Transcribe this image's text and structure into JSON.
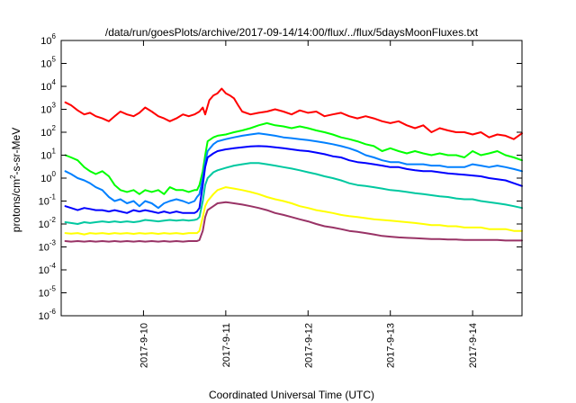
{
  "chart_data": {
    "type": "line",
    "title": "/data/run/goesPlots/archive/2017-09-14/14:00/flux/../flux/5daysMoonFluxes.txt",
    "xlabel": "Coordinated Universal Time (UTC)",
    "ylabel": "protons/cm2-s-sr-MeV",
    "ylabel_parts": {
      "pre": "protons/cm",
      "sup": "2",
      "post": "-s-sr-MeV"
    },
    "yscale": "log",
    "ylim": [
      1e-06,
      1000000.0
    ],
    "xlim": [
      0,
      5.6
    ],
    "x_unit_note": "",
    "grid": false,
    "y_ticks": [
      {
        "exp": -6,
        "base": "10",
        "sup": "-6"
      },
      {
        "exp": -5,
        "base": "10",
        "sup": "-5"
      },
      {
        "exp": -4,
        "base": "10",
        "sup": "-4"
      },
      {
        "exp": -3,
        "base": "10",
        "sup": "-3"
      },
      {
        "exp": -2,
        "base": "10",
        "sup": "-2"
      },
      {
        "exp": -1,
        "base": "10",
        "sup": "-1"
      },
      {
        "exp": 0,
        "base": "10",
        "sup": "0"
      },
      {
        "exp": 1,
        "base": "10",
        "sup": "1"
      },
      {
        "exp": 2,
        "base": "10",
        "sup": "2"
      },
      {
        "exp": 3,
        "base": "10",
        "sup": "3"
      },
      {
        "exp": 4,
        "base": "10",
        "sup": "4"
      },
      {
        "exp": 5,
        "base": "10",
        "sup": "5"
      },
      {
        "exp": 6,
        "base": "10",
        "sup": "6"
      }
    ],
    "x_ticks": [
      {
        "x": 1,
        "label": "2017-9-10"
      },
      {
        "x": 2,
        "label": "2017-9-11"
      },
      {
        "x": 3,
        "label": "2017-9-12"
      },
      {
        "x": 4,
        "label": "2017-9-13"
      },
      {
        "x": 5,
        "label": "2017-9-14"
      }
    ],
    "series": [
      {
        "color": "#ff0000",
        "x": [
          0.05,
          0.12,
          0.2,
          0.28,
          0.35,
          0.42,
          0.5,
          0.58,
          0.65,
          0.72,
          0.8,
          0.88,
          0.95,
          1.02,
          1.1,
          1.18,
          1.25,
          1.32,
          1.4,
          1.48,
          1.55,
          1.62,
          1.68,
          1.72,
          1.75,
          1.8,
          1.85,
          1.9,
          1.95,
          2.0,
          2.05,
          2.1,
          2.15,
          2.2,
          2.3,
          2.4,
          2.5,
          2.6,
          2.7,
          2.8,
          2.9,
          3.0,
          3.1,
          3.2,
          3.3,
          3.4,
          3.5,
          3.6,
          3.7,
          3.8,
          3.9,
          4.0,
          4.1,
          4.2,
          4.3,
          4.4,
          4.5,
          4.6,
          4.7,
          4.8,
          4.9,
          5.0,
          5.1,
          5.2,
          5.3,
          5.4,
          5.5,
          5.6
        ],
        "y": [
          2000,
          1500,
          900,
          600,
          700,
          500,
          400,
          300,
          500,
          800,
          600,
          500,
          700,
          1200,
          800,
          500,
          400,
          300,
          400,
          600,
          500,
          600,
          800,
          1200,
          600,
          2500,
          4000,
          5000,
          8000,
          5000,
          4000,
          3000,
          1500,
          800,
          600,
          700,
          800,
          1000,
          800,
          600,
          900,
          700,
          800,
          500,
          600,
          700,
          500,
          400,
          500,
          400,
          300,
          250,
          300,
          200,
          150,
          200,
          100,
          150,
          120,
          100,
          100,
          80,
          100,
          60,
          80,
          70,
          50,
          90
        ]
      },
      {
        "color": "#00ff00",
        "x": [
          0.05,
          0.12,
          0.2,
          0.28,
          0.35,
          0.42,
          0.5,
          0.58,
          0.65,
          0.72,
          0.8,
          0.88,
          0.95,
          1.02,
          1.1,
          1.18,
          1.25,
          1.32,
          1.4,
          1.48,
          1.55,
          1.62,
          1.65,
          1.68,
          1.72,
          1.75,
          1.78,
          1.85,
          1.9,
          2.0,
          2.1,
          2.2,
          2.3,
          2.4,
          2.5,
          2.6,
          2.7,
          2.8,
          2.9,
          3.0,
          3.1,
          3.2,
          3.3,
          3.4,
          3.5,
          3.6,
          3.7,
          3.8,
          3.9,
          4.0,
          4.1,
          4.2,
          4.3,
          4.4,
          4.5,
          4.6,
          4.7,
          4.8,
          4.9,
          5.0,
          5.1,
          5.2,
          5.3,
          5.4,
          5.5,
          5.6
        ],
        "y": [
          10,
          8,
          6,
          3,
          2,
          1.5,
          2,
          1.2,
          0.5,
          0.3,
          0.25,
          0.3,
          0.2,
          0.3,
          0.25,
          0.3,
          0.2,
          0.4,
          0.3,
          0.3,
          0.25,
          0.3,
          0.3,
          0.5,
          2,
          10,
          40,
          60,
          70,
          80,
          100,
          120,
          150,
          200,
          250,
          200,
          180,
          150,
          180,
          150,
          120,
          100,
          80,
          60,
          50,
          40,
          30,
          25,
          15,
          20,
          15,
          12,
          15,
          12,
          10,
          12,
          10,
          10,
          8,
          15,
          10,
          12,
          15,
          10,
          8,
          6
        ]
      },
      {
        "color": "#0080ff",
        "x": [
          0.05,
          0.12,
          0.2,
          0.28,
          0.35,
          0.42,
          0.5,
          0.58,
          0.65,
          0.72,
          0.8,
          0.88,
          0.95,
          1.02,
          1.1,
          1.18,
          1.25,
          1.32,
          1.4,
          1.48,
          1.55,
          1.62,
          1.65,
          1.68,
          1.72,
          1.75,
          1.78,
          1.85,
          1.9,
          2.0,
          2.1,
          2.2,
          2.3,
          2.4,
          2.5,
          2.6,
          2.7,
          2.8,
          2.9,
          3.0,
          3.1,
          3.2,
          3.3,
          3.4,
          3.5,
          3.6,
          3.7,
          3.8,
          3.9,
          4.0,
          4.1,
          4.2,
          4.3,
          4.4,
          4.5,
          4.6,
          4.7,
          4.8,
          4.9,
          5.0,
          5.1,
          5.2,
          5.3,
          5.4,
          5.5,
          5.6
        ],
        "y": [
          2,
          1.5,
          1,
          0.8,
          0.6,
          0.4,
          0.3,
          0.15,
          0.1,
          0.12,
          0.08,
          0.1,
          0.06,
          0.1,
          0.08,
          0.05,
          0.08,
          0.1,
          0.12,
          0.1,
          0.08,
          0.1,
          0.15,
          0.2,
          1,
          5,
          15,
          30,
          40,
          50,
          60,
          70,
          80,
          90,
          80,
          70,
          60,
          55,
          50,
          45,
          40,
          35,
          30,
          25,
          20,
          15,
          10,
          8,
          6,
          5,
          5,
          4,
          4,
          4,
          3.5,
          3.5,
          3,
          3,
          3,
          4,
          3.5,
          3,
          3.5,
          3,
          2.5,
          2
        ]
      },
      {
        "color": "#0000ff",
        "x": [
          0.05,
          0.12,
          0.2,
          0.28,
          0.35,
          0.42,
          0.5,
          0.58,
          0.65,
          0.72,
          0.8,
          0.88,
          0.95,
          1.02,
          1.1,
          1.18,
          1.25,
          1.32,
          1.4,
          1.48,
          1.55,
          1.62,
          1.65,
          1.68,
          1.72,
          1.75,
          1.78,
          1.85,
          1.9,
          2.0,
          2.1,
          2.2,
          2.3,
          2.4,
          2.5,
          2.6,
          2.7,
          2.8,
          2.9,
          3.0,
          3.1,
          3.2,
          3.3,
          3.4,
          3.5,
          3.6,
          3.7,
          3.8,
          3.9,
          4.0,
          4.1,
          4.2,
          4.3,
          4.4,
          4.5,
          4.6,
          4.7,
          4.8,
          4.9,
          5.0,
          5.1,
          5.2,
          5.3,
          5.4,
          5.5,
          5.6
        ],
        "y": [
          0.06,
          0.05,
          0.04,
          0.05,
          0.045,
          0.04,
          0.04,
          0.035,
          0.04,
          0.035,
          0.03,
          0.04,
          0.035,
          0.04,
          0.035,
          0.03,
          0.035,
          0.03,
          0.035,
          0.03,
          0.03,
          0.03,
          0.035,
          0.05,
          0.5,
          3,
          8,
          12,
          15,
          18,
          20,
          22,
          24,
          25,
          24,
          22,
          20,
          18,
          16,
          15,
          13,
          11,
          9,
          8,
          6,
          5,
          4.5,
          4,
          3.5,
          3,
          3,
          2.5,
          2.2,
          2,
          2,
          1.8,
          1.6,
          1.5,
          1.4,
          1.3,
          1.2,
          1.0,
          0.9,
          0.8,
          0.6,
          0.45
        ]
      },
      {
        "color": "#00c8a0",
        "x": [
          0.05,
          0.12,
          0.2,
          0.28,
          0.35,
          0.42,
          0.5,
          0.58,
          0.65,
          0.72,
          0.8,
          0.88,
          0.95,
          1.02,
          1.1,
          1.18,
          1.25,
          1.32,
          1.4,
          1.48,
          1.55,
          1.62,
          1.65,
          1.68,
          1.72,
          1.75,
          1.78,
          1.85,
          1.9,
          2.0,
          2.1,
          2.2,
          2.3,
          2.4,
          2.5,
          2.6,
          2.7,
          2.8,
          2.9,
          3.0,
          3.1,
          3.2,
          3.3,
          3.4,
          3.5,
          3.6,
          3.7,
          3.8,
          3.9,
          4.0,
          4.1,
          4.2,
          4.3,
          4.4,
          4.5,
          4.6,
          4.7,
          4.8,
          4.9,
          5.0,
          5.1,
          5.2,
          5.3,
          5.4,
          5.5,
          5.6
        ],
        "y": [
          0.012,
          0.011,
          0.01,
          0.012,
          0.011,
          0.012,
          0.013,
          0.012,
          0.013,
          0.012,
          0.013,
          0.012,
          0.013,
          0.015,
          0.014,
          0.013,
          0.014,
          0.015,
          0.014,
          0.015,
          0.014,
          0.015,
          0.016,
          0.02,
          0.1,
          0.5,
          1,
          1.8,
          2.2,
          2.8,
          3.5,
          4,
          4.5,
          4.5,
          4,
          3.5,
          3,
          2.6,
          2.2,
          1.8,
          1.5,
          1.2,
          1,
          0.8,
          0.6,
          0.5,
          0.45,
          0.4,
          0.35,
          0.3,
          0.28,
          0.25,
          0.22,
          0.2,
          0.18,
          0.16,
          0.15,
          0.13,
          0.12,
          0.12,
          0.1,
          0.09,
          0.08,
          0.07,
          0.06,
          0.05
        ]
      },
      {
        "color": "#ffff00",
        "x": [
          0.05,
          0.12,
          0.2,
          0.28,
          0.35,
          0.42,
          0.5,
          0.58,
          0.65,
          0.72,
          0.8,
          0.88,
          0.95,
          1.02,
          1.1,
          1.18,
          1.25,
          1.32,
          1.4,
          1.48,
          1.55,
          1.62,
          1.65,
          1.68,
          1.72,
          1.75,
          1.78,
          1.85,
          1.9,
          2.0,
          2.1,
          2.2,
          2.3,
          2.4,
          2.5,
          2.6,
          2.7,
          2.8,
          2.9,
          3.0,
          3.1,
          3.2,
          3.3,
          3.4,
          3.5,
          3.6,
          3.7,
          3.8,
          3.9,
          4.0,
          4.1,
          4.2,
          4.3,
          4.4,
          4.5,
          4.6,
          4.7,
          4.8,
          4.9,
          5.0,
          5.1,
          5.2,
          5.3,
          5.4,
          5.5,
          5.6
        ],
        "y": [
          0.004,
          0.0038,
          0.004,
          0.0035,
          0.004,
          0.0038,
          0.004,
          0.0037,
          0.004,
          0.0038,
          0.004,
          0.0037,
          0.004,
          0.0038,
          0.004,
          0.0037,
          0.004,
          0.0038,
          0.004,
          0.0037,
          0.004,
          0.004,
          0.004,
          0.005,
          0.02,
          0.06,
          0.1,
          0.2,
          0.3,
          0.4,
          0.35,
          0.3,
          0.25,
          0.2,
          0.15,
          0.12,
          0.1,
          0.08,
          0.06,
          0.05,
          0.04,
          0.035,
          0.03,
          0.025,
          0.022,
          0.02,
          0.018,
          0.016,
          0.015,
          0.014,
          0.013,
          0.012,
          0.011,
          0.01,
          0.009,
          0.009,
          0.008,
          0.008,
          0.007,
          0.007,
          0.007,
          0.006,
          0.006,
          0.006,
          0.005,
          0.005
        ]
      },
      {
        "color": "#993366",
        "x": [
          0.05,
          0.12,
          0.2,
          0.28,
          0.35,
          0.42,
          0.5,
          0.58,
          0.65,
          0.72,
          0.8,
          0.88,
          0.95,
          1.02,
          1.1,
          1.18,
          1.25,
          1.32,
          1.4,
          1.48,
          1.55,
          1.62,
          1.65,
          1.68,
          1.72,
          1.75,
          1.78,
          1.85,
          1.9,
          2.0,
          2.1,
          2.2,
          2.3,
          2.4,
          2.5,
          2.6,
          2.7,
          2.8,
          2.9,
          3.0,
          3.1,
          3.2,
          3.3,
          3.4,
          3.5,
          3.6,
          3.7,
          3.8,
          3.9,
          4.0,
          4.1,
          4.2,
          4.3,
          4.4,
          4.5,
          4.6,
          4.7,
          4.8,
          4.9,
          5.0,
          5.1,
          5.2,
          5.3,
          5.4,
          5.5,
          5.6
        ],
        "y": [
          0.0018,
          0.0017,
          0.0018,
          0.0017,
          0.0018,
          0.0017,
          0.0018,
          0.0017,
          0.0018,
          0.0017,
          0.0018,
          0.0017,
          0.0018,
          0.0017,
          0.0018,
          0.0017,
          0.0018,
          0.0017,
          0.0018,
          0.0017,
          0.0018,
          0.0018,
          0.0018,
          0.002,
          0.005,
          0.02,
          0.04,
          0.06,
          0.08,
          0.09,
          0.08,
          0.07,
          0.06,
          0.05,
          0.04,
          0.03,
          0.025,
          0.02,
          0.016,
          0.013,
          0.01,
          0.008,
          0.007,
          0.006,
          0.005,
          0.0045,
          0.004,
          0.0035,
          0.003,
          0.0028,
          0.0026,
          0.0025,
          0.0024,
          0.0023,
          0.0022,
          0.0022,
          0.0021,
          0.0021,
          0.002,
          0.002,
          0.002,
          0.002,
          0.002,
          0.0019,
          0.0019,
          0.0019
        ]
      }
    ]
  }
}
